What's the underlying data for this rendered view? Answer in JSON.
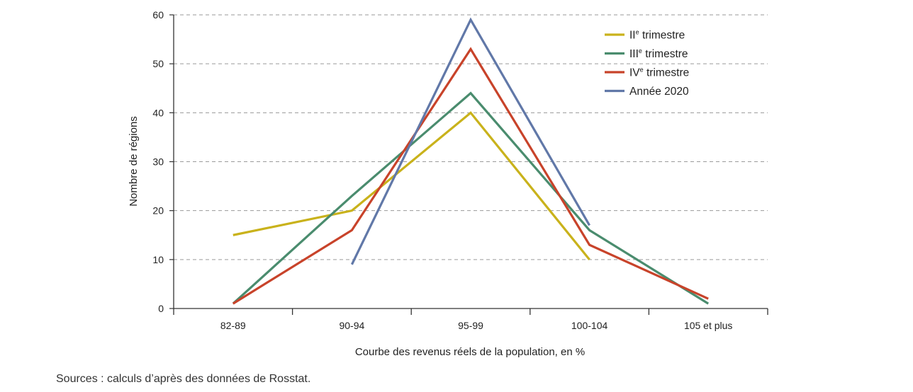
{
  "chart_data": {
    "type": "line",
    "categories": [
      "82-89",
      "90-94",
      "95-99",
      "100-104",
      "105 et plus"
    ],
    "xlabel": "Courbe des revenus réels de la population, en %",
    "ylabel": "Nombre de régions",
    "ylim": [
      0,
      60
    ],
    "yticks": [
      0,
      10,
      20,
      30,
      40,
      50,
      60
    ],
    "grid": true,
    "legend_position": "top-right",
    "series": [
      {
        "name": "IIe trimestre",
        "name_base": "II",
        "name_sup": "e",
        "name_rest": " trimestre",
        "color": "#c9b21b",
        "values": [
          15,
          20,
          40,
          10,
          null
        ]
      },
      {
        "name": "IIIe trimestre",
        "name_base": "III",
        "name_sup": "e",
        "name_rest": " trimestre",
        "color": "#4a8c6e",
        "values": [
          1,
          23,
          44,
          16,
          1
        ]
      },
      {
        "name": "IVe trimestre",
        "name_base": "IV",
        "name_sup": "e",
        "name_rest": " trimestre",
        "color": "#c8432a",
        "values": [
          1,
          16,
          53,
          13,
          2
        ]
      },
      {
        "name": "Année 2020",
        "name_base": "Année 2020",
        "name_sup": "",
        "name_rest": "",
        "color": "#6178a8",
        "values": [
          null,
          9,
          59,
          17,
          null
        ]
      }
    ]
  },
  "source": "Sources : calculs d’après des données de Rosstat."
}
